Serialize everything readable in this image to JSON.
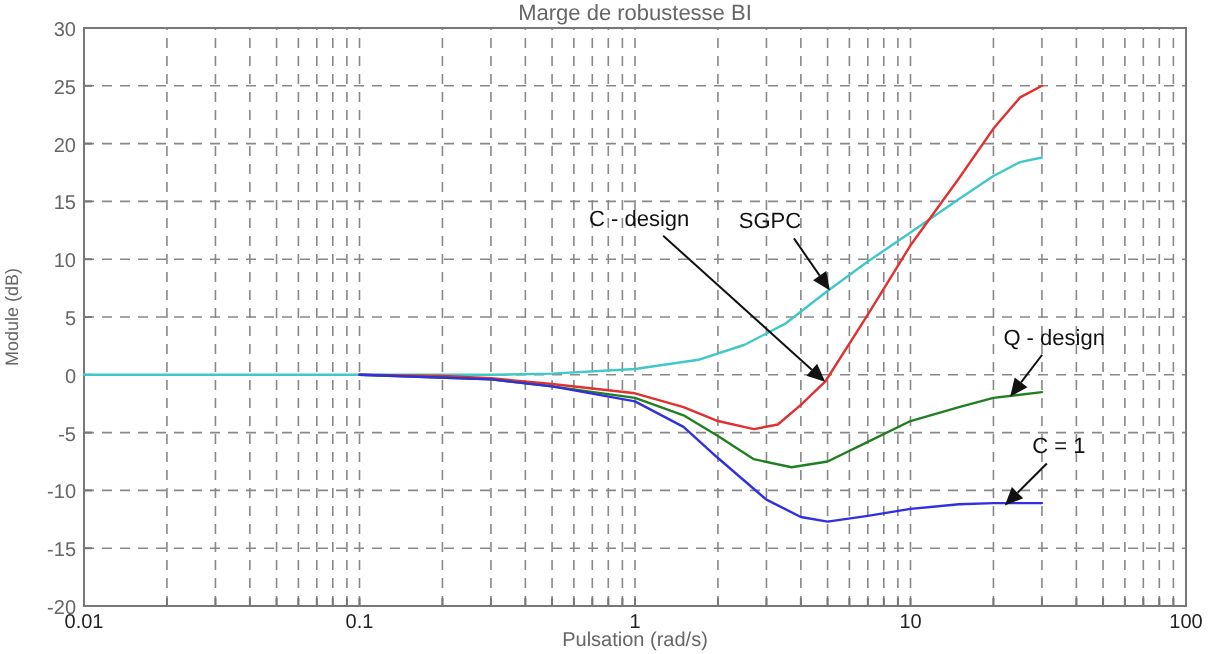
{
  "chart_data": {
    "type": "line",
    "title": "Marge de robustesse BI",
    "xlabel": "Pulsation (rad/s)",
    "ylabel": "Module (dB)",
    "log": "x",
    "grid": true,
    "line_style": "solid",
    "marker": "none",
    "xlim": [
      0.01,
      100
    ],
    "ylim": [
      -20,
      30
    ],
    "xticks": [
      0.01,
      {
        "value": 0.02,
        "label": null
      },
      {
        "value": 0.03,
        "label": null
      },
      {
        "value": 0.04,
        "label": null
      },
      {
        "value": 0.05,
        "label": null
      },
      {
        "value": 0.06,
        "label": null
      },
      {
        "value": 0.07,
        "label": null
      },
      {
        "value": 0.08,
        "label": null
      },
      {
        "value": 0.09,
        "label": null
      },
      0.1,
      {
        "value": 0.2,
        "label": null
      },
      {
        "value": 0.3,
        "label": null
      },
      {
        "value": 0.4,
        "label": null
      },
      {
        "value": 0.5,
        "label": null
      },
      {
        "value": 0.6,
        "label": null
      },
      {
        "value": 0.7,
        "label": null
      },
      {
        "value": 0.8,
        "label": null
      },
      {
        "value": 0.9,
        "label": null
      },
      1,
      {
        "value": 2,
        "label": null
      },
      {
        "value": 3,
        "label": null
      },
      {
        "value": 4,
        "label": null
      },
      {
        "value": 5,
        "label": null
      },
      {
        "value": 6,
        "label": null
      },
      {
        "value": 7,
        "label": null
      },
      {
        "value": 8,
        "label": null
      },
      {
        "value": 9,
        "label": null
      },
      10,
      {
        "value": 20,
        "label": null
      },
      {
        "value": 30,
        "label": null
      },
      {
        "value": 40,
        "label": null
      },
      {
        "value": 50,
        "label": null
      },
      {
        "value": 60,
        "label": null
      },
      {
        "value": 70,
        "label": null
      },
      {
        "value": 80,
        "label": null
      },
      {
        "value": 90,
        "label": null
      },
      100
    ],
    "yticks": [
      -20,
      -15,
      -10,
      -5,
      0,
      5,
      10,
      15,
      20,
      25,
      30
    ],
    "series": [
      {
        "color": "#40c8c8",
        "x": [
          0.01,
          0.1,
          0.3,
          0.5,
          1,
          1.7,
          2.5,
          3.5,
          4.9,
          7,
          10,
          15,
          20,
          25,
          30
        ],
        "values": [
          0,
          0,
          0,
          0.1,
          0.5,
          1.3,
          2.6,
          4.4,
          7.1,
          9.8,
          12.3,
          15.2,
          17.2,
          18.4,
          18.8
        ]
      },
      {
        "color": "#e03030",
        "x": [
          0.1,
          0.2,
          0.3,
          0.5,
          1,
          1.5,
          2,
          2.7,
          3.3,
          4,
          4.9,
          7,
          10,
          15,
          20,
          25,
          30
        ],
        "values": [
          0,
          -0.1,
          -0.3,
          -0.8,
          -1.6,
          -2.8,
          -4,
          -4.7,
          -4.3,
          -2.6,
          -0.6,
          5.2,
          11.2,
          17,
          21.3,
          24,
          25
        ]
      },
      {
        "color": "#208020",
        "x": [
          0.1,
          0.3,
          0.5,
          1,
          1.5,
          2,
          2.7,
          3.7,
          5,
          7,
          10,
          15,
          20,
          30
        ],
        "values": [
          0,
          -0.4,
          -1,
          -2,
          -3.5,
          -5.3,
          -7.3,
          -8,
          -7.5,
          -5.8,
          -4,
          -2.8,
          -2,
          -1.5
        ]
      },
      {
        "color": "#3030e0",
        "x": [
          0.1,
          0.3,
          0.5,
          1,
          1.5,
          2,
          3,
          4,
          5,
          7,
          10,
          15,
          20,
          30
        ],
        "values": [
          0,
          -0.4,
          -1,
          -2.3,
          -4.5,
          -7.2,
          -10.8,
          -12.3,
          -12.7,
          -12.2,
          -11.6,
          -11.2,
          -11.1,
          -11.1
        ]
      }
    ],
    "annotations": [
      {
        "text": "C - design",
        "x": 4.9,
        "y": -0.6
      },
      {
        "text": "SGPC",
        "x": 5.1,
        "y": 7.3
      },
      {
        "text": "Q - design",
        "x": 23,
        "y": -1.9
      },
      {
        "text": "C = 1",
        "x": 22,
        "y": -11.3
      }
    ]
  }
}
